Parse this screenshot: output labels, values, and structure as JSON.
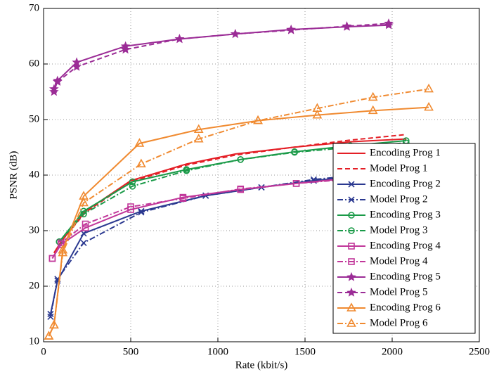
{
  "chart_data": {
    "type": "line",
    "xlabel": "Rate (kbit/s)",
    "ylabel": "PSNR (dB)",
    "xlim": [
      0,
      2500
    ],
    "xticks": [
      0,
      500,
      1000,
      1500,
      2000,
      2500
    ],
    "ylim": [
      10,
      70
    ],
    "yticks": [
      10,
      20,
      30,
      40,
      50,
      60,
      70
    ],
    "grid": true,
    "legend": "lower right",
    "series": [
      {
        "name": "Encoding Prog 1",
        "color": "#e41f26",
        "dash": "solid",
        "marker": "none",
        "x": [
          60,
          100,
          240,
          500,
          820,
          1100,
          1430,
          1760,
          2080
        ],
        "values": [
          26,
          28,
          33.5,
          39,
          42,
          43.8,
          45,
          46,
          46.5
        ]
      },
      {
        "name": "Model Prog 1",
        "color": "#e41f26",
        "dash": "dash",
        "marker": "none",
        "x": [
          60,
          100,
          240,
          500,
          820,
          1100,
          1430,
          1760,
          2080
        ],
        "values": [
          26,
          28,
          33.3,
          38.8,
          41.8,
          43.6,
          45,
          46.3,
          47.3
        ]
      },
      {
        "name": "Encoding Prog 2",
        "color": "#2b3990",
        "dash": "solid",
        "marker": "x",
        "x": [
          40,
          80,
          230,
          560,
          930,
          1250,
          1550,
          1870
        ],
        "values": [
          15,
          21,
          29.5,
          33.5,
          36.3,
          37.8,
          39,
          40
        ]
      },
      {
        "name": "Model Prog 2",
        "color": "#2b3990",
        "dash": "dashdot",
        "marker": "x",
        "x": [
          40,
          80,
          230,
          560,
          930,
          1250,
          1550,
          1870
        ],
        "values": [
          14.5,
          21.3,
          27.8,
          33.3,
          36.3,
          37.8,
          39.2,
          40.2
        ]
      },
      {
        "name": "Encoding Prog 3",
        "color": "#1a9a48",
        "dash": "solid",
        "marker": "circle",
        "x": [
          90,
          230,
          510,
          820,
          1130,
          1440,
          1760,
          2080
        ],
        "values": [
          28,
          33.5,
          38.8,
          41,
          42.8,
          44.2,
          45.3,
          46.2
        ]
      },
      {
        "name": "Model Prog 3",
        "color": "#1a9a48",
        "dash": "dashdot",
        "marker": "circle",
        "x": [
          90,
          230,
          510,
          820,
          1130,
          1440,
          1760,
          2080
        ],
        "values": [
          28,
          33,
          38,
          40.8,
          42.8,
          44.1,
          45,
          45.8
        ]
      },
      {
        "name": "Encoding Prog 4",
        "color": "#c1379a",
        "dash": "solid",
        "marker": "square",
        "x": [
          50,
          100,
          240,
          500,
          800,
          1130,
          1450,
          1770
        ],
        "values": [
          25,
          27.5,
          30.5,
          33.8,
          36,
          37.4,
          38.5,
          39.5
        ]
      },
      {
        "name": "Model Prog 4",
        "color": "#c1379a",
        "dash": "dashdot",
        "marker": "square",
        "x": [
          50,
          100,
          240,
          500,
          800,
          1130,
          1450,
          1770
        ],
        "values": [
          25,
          27.8,
          31.2,
          34.3,
          35.8,
          37.5,
          38.5,
          39.3
        ]
      },
      {
        "name": "Encoding Prog 5",
        "color": "#9b2c96",
        "dash": "solid",
        "marker": "star",
        "x": [
          60,
          80,
          190,
          470,
          780,
          1100,
          1420,
          1740,
          1980
        ],
        "values": [
          55,
          57,
          60.3,
          63.2,
          64.5,
          65.4,
          66.2,
          66.7,
          67
        ]
      },
      {
        "name": "Model Prog 5",
        "color": "#9b2c96",
        "dash": "dash",
        "marker": "star",
        "x": [
          60,
          80,
          190,
          470,
          780,
          1100,
          1420,
          1740,
          1980
        ],
        "values": [
          55.5,
          56.8,
          59.5,
          62.6,
          64.5,
          65.4,
          66.1,
          66.8,
          67.3
        ]
      },
      {
        "name": "Encoding Prog 6",
        "color": "#f08a30",
        "dash": "solid",
        "marker": "triangle",
        "x": [
          30,
          60,
          110,
          230,
          550,
          890,
          1230,
          1570,
          1890,
          2210
        ],
        "values": [
          11,
          13,
          26.5,
          36.2,
          45.7,
          48.2,
          49.8,
          50.8,
          51.6,
          52.2
        ]
      },
      {
        "name": "Model Prog 6",
        "color": "#f08a30",
        "dash": "dashdot",
        "marker": "triangle",
        "x": [
          30,
          60,
          110,
          230,
          560,
          890,
          1230,
          1570,
          1890,
          2210
        ],
        "values": [
          11,
          13,
          26,
          35,
          42,
          46.5,
          49.8,
          52,
          54,
          55.5
        ]
      }
    ]
  }
}
